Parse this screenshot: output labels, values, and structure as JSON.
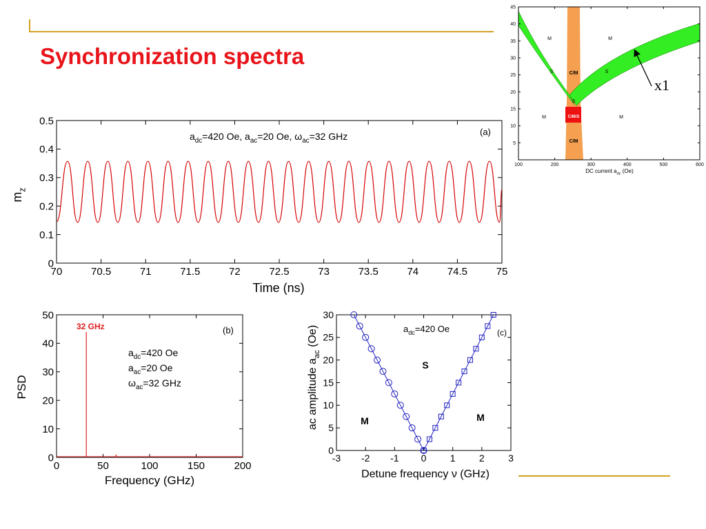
{
  "title": "Synchronization spectra",
  "chart_data": [
    {
      "type": "region-map",
      "xlim": [
        100,
        600
      ],
      "xticks": [
        100,
        200,
        300,
        400,
        500,
        600
      ],
      "ylim": [
        0,
        45
      ],
      "yticks": [
        5,
        10,
        15,
        20,
        25,
        30,
        35,
        40,
        45
      ],
      "xlabel": [
        "DC current a",
        "dc",
        " (Oe)"
      ],
      "regions": [
        "M",
        "M",
        "S",
        "C/M",
        "S",
        "S",
        "M",
        "C/M/S",
        "M",
        "C/M"
      ],
      "annotation": "x1"
    },
    {
      "type": "line",
      "xlim": [
        70,
        75
      ],
      "xticks": [
        70,
        70.5,
        71,
        71.5,
        72,
        72.5,
        73,
        73.5,
        74,
        74.5,
        75
      ],
      "ylim": [
        0,
        0.5
      ],
      "yticks": [
        0,
        0.1,
        0.2,
        0.3,
        0.4,
        0.5
      ],
      "xlabel": [
        "Time (ns)"
      ],
      "ylabel": [
        "m",
        "z"
      ],
      "annotation": [
        "a",
        "dc",
        "=420 Oe, a",
        "ac",
        "=20 Oe, ω",
        "ac",
        "=32 GHz"
      ],
      "panel": "(a)",
      "series": [
        {
          "color": "#d40000",
          "x": [
            70.0,
            70.124,
            70.237,
            70.35,
            70.463,
            70.575,
            70.688,
            70.801,
            70.914,
            71.026,
            71.139,
            71.252,
            71.365,
            71.477,
            71.59,
            71.703,
            71.816,
            71.928,
            72.041,
            72.154,
            72.267,
            72.379,
            72.492,
            72.605,
            72.718,
            72.83,
            72.943,
            73.056,
            73.169,
            73.281,
            73.394,
            73.507,
            73.62,
            73.732,
            73.845,
            73.958,
            74.071,
            74.183,
            74.296,
            74.409,
            74.522,
            74.634,
            74.747,
            74.86,
            74.973,
            75.0
          ],
          "values": [
            0.145,
            0.357,
            0.143,
            0.357,
            0.143,
            0.357,
            0.143,
            0.357,
            0.143,
            0.357,
            0.143,
            0.357,
            0.143,
            0.357,
            0.143,
            0.357,
            0.143,
            0.357,
            0.143,
            0.357,
            0.143,
            0.357,
            0.143,
            0.357,
            0.143,
            0.357,
            0.143,
            0.357,
            0.143,
            0.357,
            0.143,
            0.357,
            0.143,
            0.357,
            0.143,
            0.357,
            0.143,
            0.357,
            0.143,
            0.357,
            0.143,
            0.357,
            0.143,
            0.357,
            0.143,
            0.26
          ]
        }
      ]
    },
    {
      "type": "spectrum",
      "xlim": [
        0,
        200
      ],
      "xticks": [
        0,
        50,
        100,
        150,
        200
      ],
      "ylim": [
        0,
        50
      ],
      "yticks": [
        0,
        10,
        20,
        30,
        40,
        50
      ],
      "xlabel": [
        "Frequency (GHz)"
      ],
      "ylabel": [
        "PSD"
      ],
      "peak_label": "32 GHz",
      "annotation": [
        [
          "a",
          "dc",
          "=420 Oe"
        ],
        [
          "a",
          "ac",
          "=20 Oe"
        ],
        [
          "ω",
          "ac",
          "=32 GHz"
        ]
      ],
      "panel": "(b)",
      "color": "#e02020",
      "x": [
        32,
        64
      ],
      "values": [
        44,
        1
      ]
    },
    {
      "type": "scatter",
      "xlim": [
        -3,
        3
      ],
      "xticks": [
        -3,
        -2,
        -1,
        0,
        1,
        2,
        3
      ],
      "ylim": [
        0,
        30
      ],
      "yticks": [
        0,
        5,
        10,
        15,
        20,
        25,
        30
      ],
      "xlabel": [
        "Detune frequency ν (GHz)"
      ],
      "ylabel": [
        "ac amplitude a",
        "ac",
        " (Oe)"
      ],
      "annotation": [
        "a",
        "dc",
        "=420 Oe"
      ],
      "panel": "(c)",
      "regions": [
        "S",
        "M",
        "M"
      ],
      "series": [
        {
          "marker": "circle",
          "color": "#2020c0",
          "x": [
            0,
            -0.2,
            -0.4,
            -0.6,
            -0.8,
            -1.0,
            -1.2,
            -1.4,
            -1.6,
            -1.8,
            -2.0,
            -2.2,
            -2.4
          ],
          "values": [
            0,
            2.5,
            5,
            7.5,
            10,
            12.5,
            15,
            17.5,
            20,
            22.5,
            25,
            27.5,
            30
          ]
        },
        {
          "marker": "square",
          "color": "#2020c0",
          "x": [
            0,
            0.2,
            0.4,
            0.6,
            0.8,
            1.0,
            1.2,
            1.4,
            1.6,
            1.8,
            2.0,
            2.2,
            2.4
          ],
          "values": [
            0,
            2.5,
            5,
            7.5,
            10,
            12.5,
            15,
            17.5,
            20,
            22.5,
            25,
            27.5,
            30
          ]
        }
      ]
    }
  ]
}
